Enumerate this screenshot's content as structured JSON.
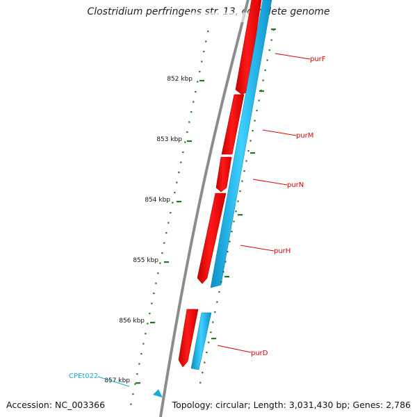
{
  "title": "Clostridium perfringens str. 13, complete genome",
  "footer": {
    "accession": "Accession: NC_003366",
    "summary": "Topology: circular; Length: 3,031,430 bp; Genes: 2,786"
  },
  "ticks": [
    "852 kbp",
    "853 kbp",
    "854 kbp",
    "855 kbp",
    "856 kbp",
    "857 kbp"
  ],
  "genes": [
    {
      "label": "purF",
      "color": "#ff0000"
    },
    {
      "label": "purM",
      "color": "#ff0000"
    },
    {
      "label": "purN",
      "color": "#ff0000"
    },
    {
      "label": "purH",
      "color": "#ff0000"
    },
    {
      "label": "purD",
      "color": "#ff0000"
    }
  ],
  "cds_label": "CPEt022",
  "colors": {
    "forward_gene": "#ff0000",
    "mirror_track": "#19b5e6",
    "label_blue": "#1aa9d9",
    "backbone": "#8c8c8c",
    "tick": "#1f7a1f"
  }
}
